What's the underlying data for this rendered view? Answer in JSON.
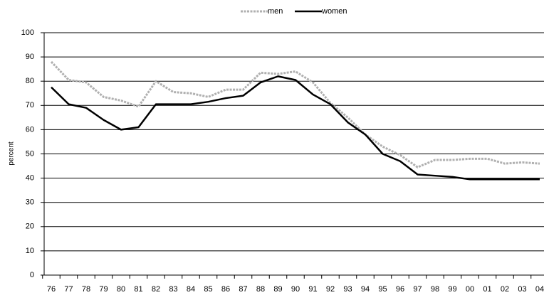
{
  "chart_data": {
    "type": "line",
    "y_label": "percent",
    "categories": [
      "76",
      "77",
      "78",
      "79",
      "80",
      "81",
      "82",
      "83",
      "84",
      "85",
      "86",
      "87",
      "88",
      "89",
      "90",
      "91",
      "92",
      "93",
      "94",
      "95",
      "96",
      "97",
      "98",
      "99",
      "00",
      "01",
      "02",
      "03",
      "04"
    ],
    "series": [
      {
        "name": "men",
        "color": "#b0b0b0",
        "dashed": true,
        "values": [
          88,
          80.5,
          79.5,
          73.5,
          72,
          69.5,
          80,
          75.5,
          75,
          73.5,
          76.5,
          76.5,
          83.5,
          83,
          84,
          79.5,
          71,
          65,
          58,
          53,
          49.5,
          44.5,
          47.5,
          47.5,
          48,
          48,
          46,
          46.5,
          46
        ]
      },
      {
        "name": "women",
        "color": "#000000",
        "dashed": false,
        "values": [
          77.5,
          70.5,
          69,
          64,
          60,
          61,
          70.5,
          70.5,
          70.5,
          71.5,
          73,
          74,
          79.5,
          82,
          80.5,
          74.5,
          70.5,
          63,
          58,
          50,
          47,
          41.5,
          41,
          40.5,
          39.5,
          39.5,
          39.5,
          39.5,
          39.5
        ]
      }
    ],
    "ylim": [
      0,
      100
    ],
    "yticks": [
      0,
      10,
      20,
      30,
      40,
      50,
      60,
      70,
      80,
      90,
      100
    ],
    "grid": true
  }
}
